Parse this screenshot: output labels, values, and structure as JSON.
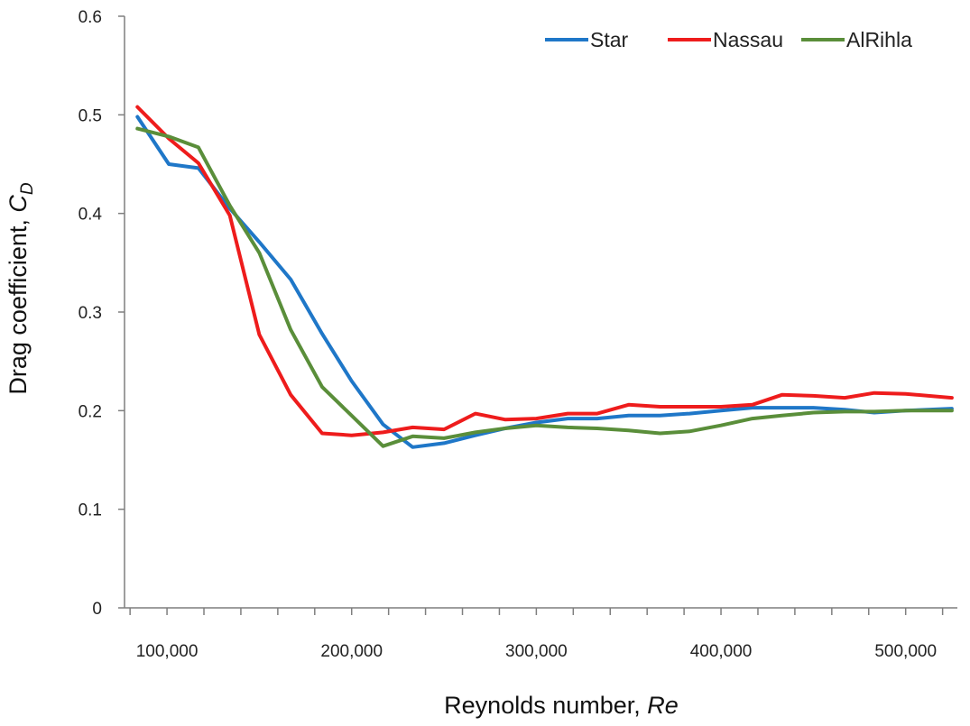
{
  "chart_data": {
    "type": "line",
    "xlabel": {
      "text": "Reynolds number, ",
      "var": "Re"
    },
    "ylabel": {
      "text": "Drag coefficient, ",
      "var": "C",
      "sub": "D"
    },
    "xlim": [
      77000,
      528000
    ],
    "ylim": [
      0,
      0.6
    ],
    "xticks": [
      100000,
      200000,
      300000,
      400000,
      500000
    ],
    "xtick_labels": [
      "100,000",
      "200,000",
      "300,000",
      "400,000",
      "500,000"
    ],
    "yticks": [
      0,
      0.1,
      0.2,
      0.3,
      0.4,
      0.5,
      0.6
    ],
    "ytick_labels": [
      "0",
      "0.1",
      "0.2",
      "0.3",
      "0.4",
      "0.5",
      "0.6"
    ],
    "grid": false,
    "legend_position": "top-right",
    "series": [
      {
        "name": "Star",
        "color": "#1f77c8",
        "x": [
          84000,
          101000,
          117000,
          134000,
          150000,
          167000,
          184000,
          200000,
          217000,
          233000,
          250000,
          267000,
          283000,
          300000,
          317000,
          333000,
          350000,
          367000,
          383000,
          400000,
          417000,
          433000,
          450000,
          467000,
          483000,
          500000,
          525000
        ],
        "y": [
          0.498,
          0.45,
          0.446,
          0.405,
          0.371,
          0.333,
          0.278,
          0.23,
          0.186,
          0.163,
          0.167,
          0.175,
          0.182,
          0.188,
          0.192,
          0.192,
          0.195,
          0.195,
          0.197,
          0.2,
          0.203,
          0.203,
          0.203,
          0.201,
          0.198,
          0.2,
          0.202
        ]
      },
      {
        "name": "Nassau",
        "color": "#ee1c1c",
        "x": [
          84000,
          101000,
          117000,
          134000,
          150000,
          167000,
          184000,
          200000,
          217000,
          233000,
          250000,
          267000,
          283000,
          300000,
          317000,
          333000,
          350000,
          367000,
          383000,
          400000,
          417000,
          433000,
          450000,
          467000,
          483000,
          500000,
          525000
        ],
        "y": [
          0.508,
          0.476,
          0.451,
          0.398,
          0.277,
          0.216,
          0.177,
          0.175,
          0.178,
          0.183,
          0.181,
          0.197,
          0.191,
          0.192,
          0.197,
          0.197,
          0.206,
          0.204,
          0.204,
          0.204,
          0.206,
          0.216,
          0.215,
          0.213,
          0.218,
          0.217,
          0.213
        ]
      },
      {
        "name": "AlRihla",
        "color": "#5a8e3a",
        "x": [
          84000,
          101000,
          117000,
          134000,
          150000,
          167000,
          184000,
          200000,
          217000,
          233000,
          250000,
          267000,
          283000,
          300000,
          317000,
          333000,
          350000,
          367000,
          383000,
          400000,
          417000,
          433000,
          450000,
          467000,
          483000,
          500000,
          525000
        ],
        "y": [
          0.486,
          0.478,
          0.467,
          0.408,
          0.36,
          0.282,
          0.224,
          0.195,
          0.164,
          0.174,
          0.172,
          0.178,
          0.182,
          0.185,
          0.183,
          0.182,
          0.18,
          0.177,
          0.179,
          0.185,
          0.192,
          0.195,
          0.198,
          0.199,
          0.199,
          0.2,
          0.2
        ]
      }
    ]
  }
}
